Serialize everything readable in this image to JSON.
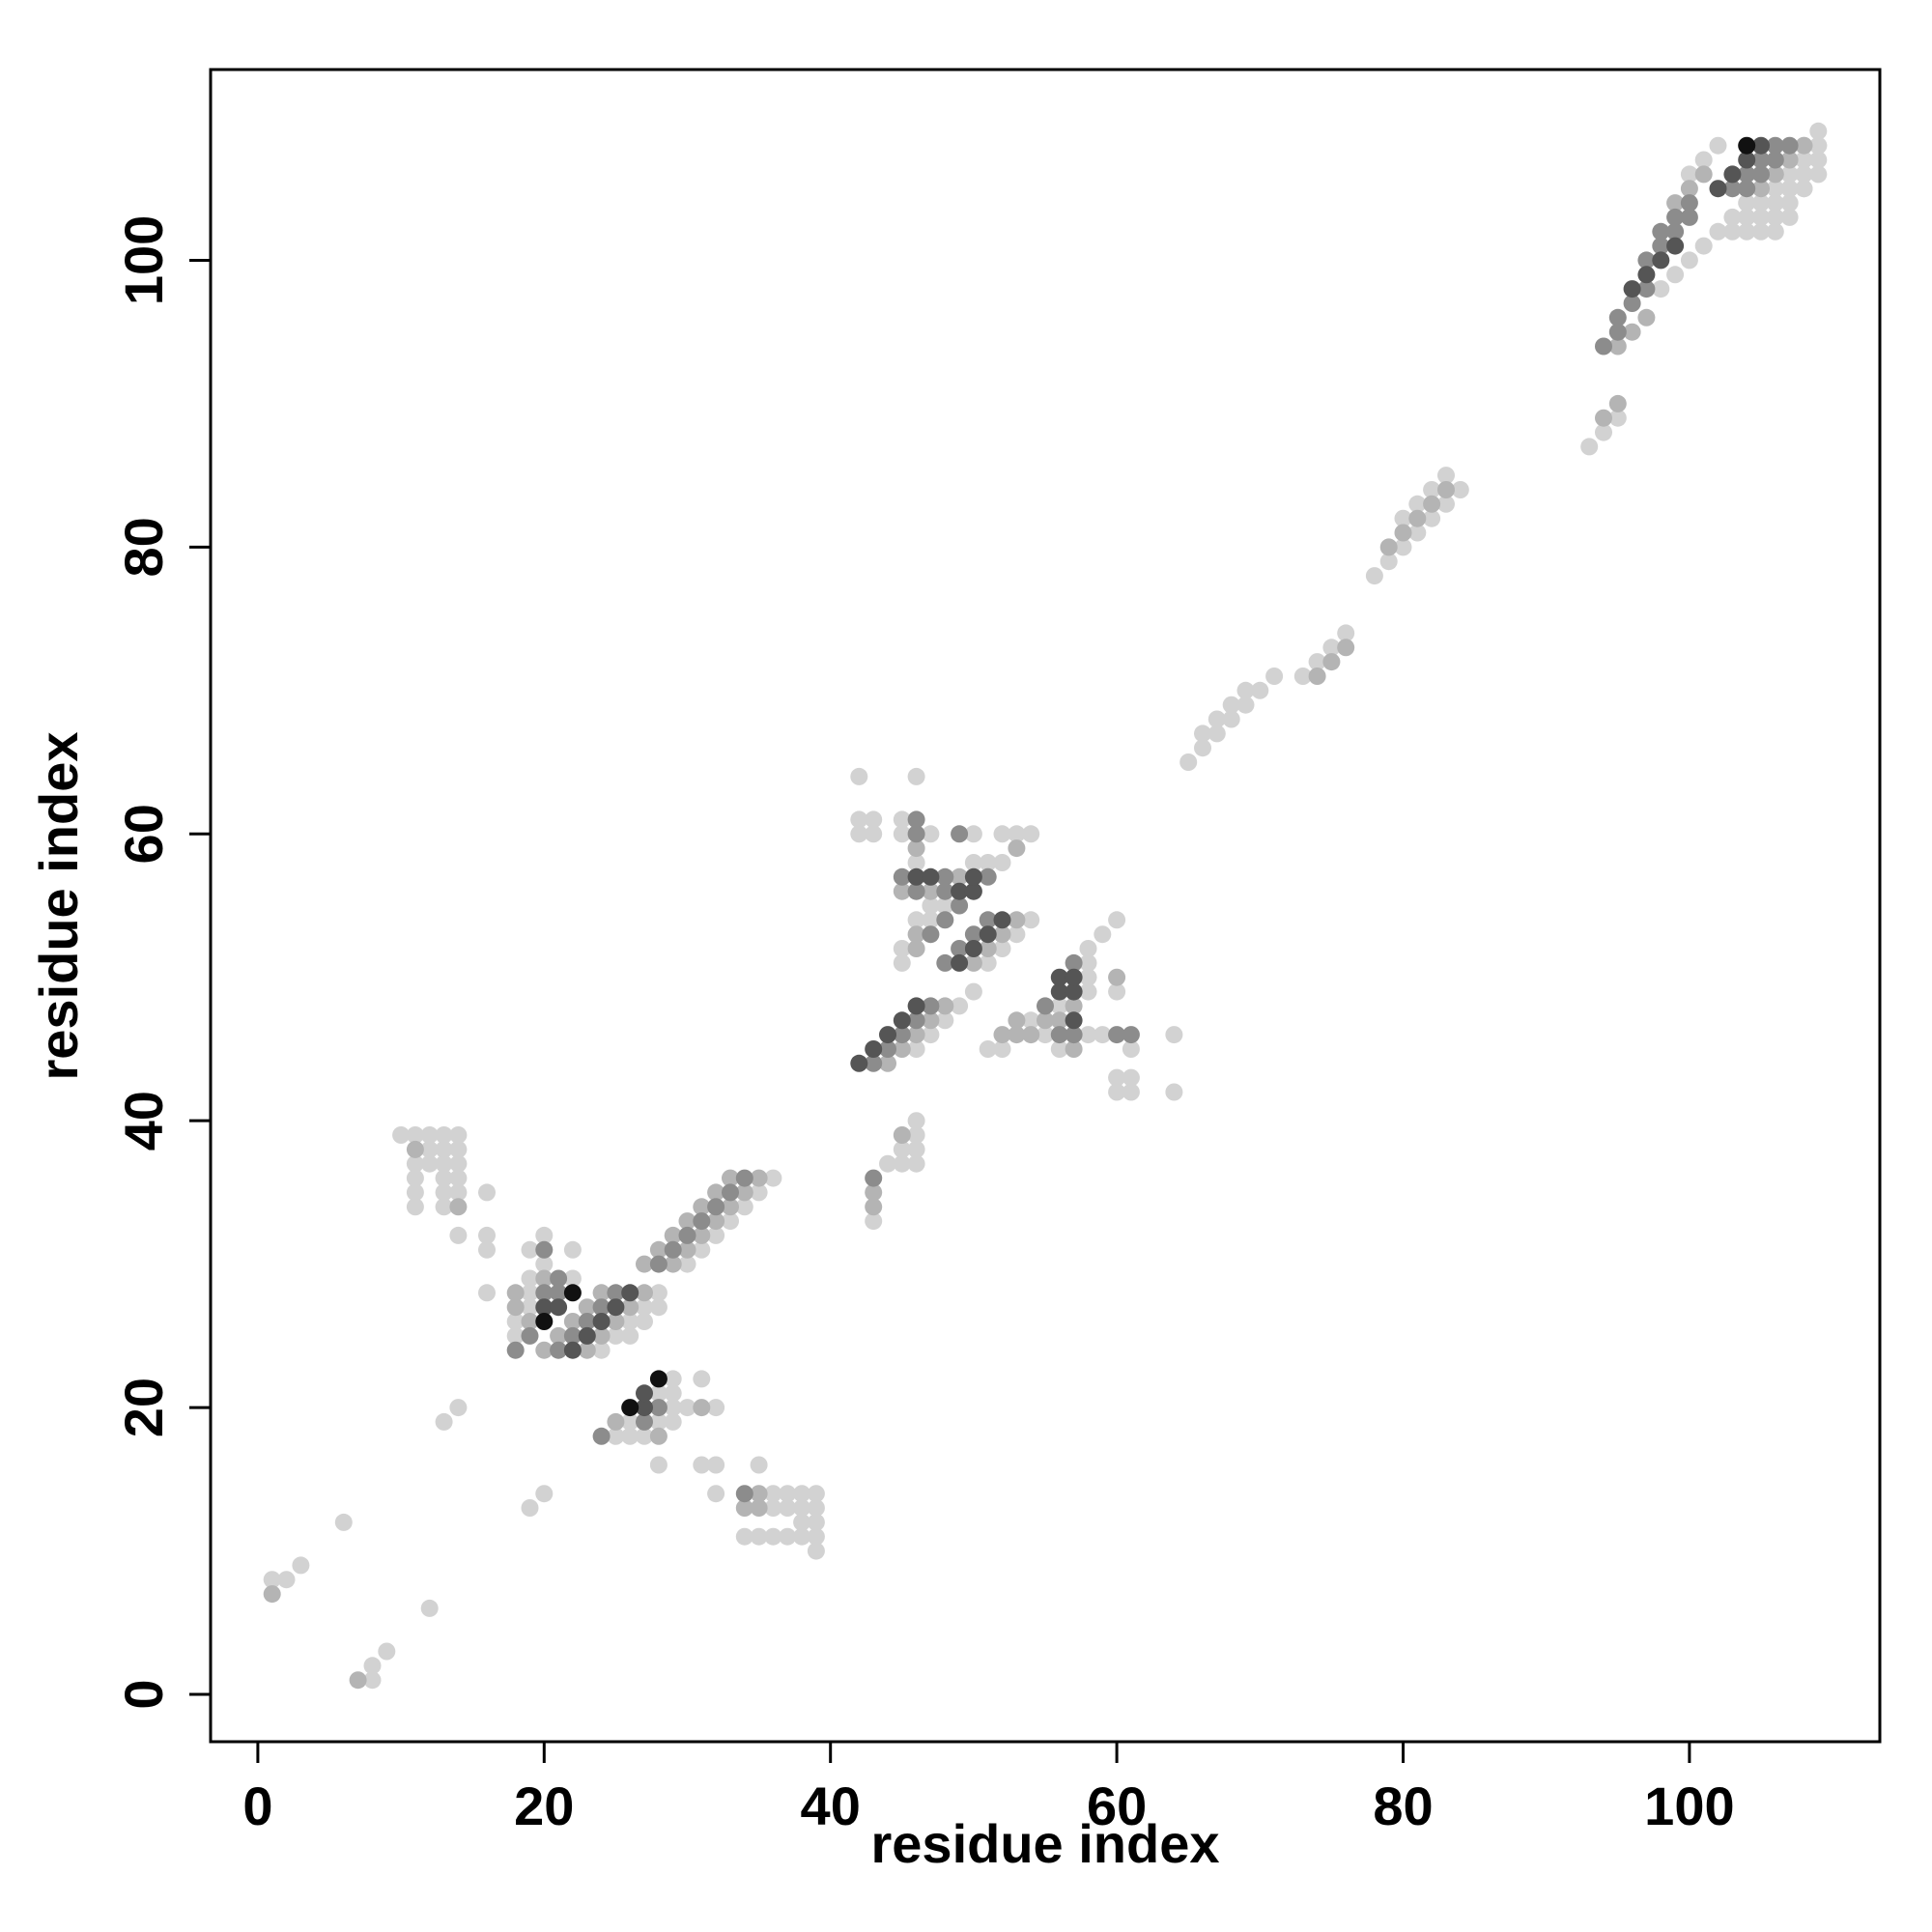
{
  "chart_data": {
    "type": "scatter",
    "title": "",
    "xlabel": "residue index",
    "ylabel": "residue index",
    "xlim": [
      -3.3,
      113.3
    ],
    "ylim": [
      -3.3,
      113.3
    ],
    "xticks": [
      0,
      20,
      40,
      60,
      80,
      100
    ],
    "yticks": [
      0,
      20,
      40,
      60,
      80,
      100
    ],
    "grid": false,
    "legend": "none",
    "shade_scale": {
      "1": "#d2d2d2",
      "2": "#b4b4b4",
      "3": "#8c8c8c",
      "4": "#555555",
      "5": "#111111"
    },
    "segments": [
      [
        0,
        98,
        101,
        1
      ],
      [
        0,
        105,
        108,
        2
      ],
      [
        1,
        104,
        107,
        3
      ],
      [
        2,
        103,
        106,
        3
      ],
      [
        3,
        102,
        105,
        4
      ],
      [
        4,
        104,
        104,
        5
      ],
      [
        -3,
        106,
        109,
        1
      ],
      [
        -2,
        107,
        109,
        1
      ],
      [
        -1,
        108,
        109,
        1
      ],
      [
        -5,
        94,
        95,
        2
      ],
      [
        -6,
        93,
        95,
        1
      ],
      [
        0,
        94,
        95,
        3
      ],
      [
        1,
        95,
        97,
        3
      ],
      [
        2,
        96,
        99,
        4
      ],
      [
        3,
        97,
        100,
        3
      ],
      [
        4,
        98,
        100,
        3
      ],
      [
        5,
        99,
        101,
        2
      ],
      [
        6,
        100,
        102,
        1
      ],
      [
        -1,
        95,
        97,
        2
      ],
      [
        0,
        102,
        109,
        1
      ],
      [
        -1,
        103,
        109,
        1
      ],
      [
        -2,
        104,
        108,
        1
      ],
      [
        -3,
        105,
        108,
        1
      ],
      [
        -4,
        106,
        107,
        1
      ],
      [
        0,
        24,
        28,
        1
      ],
      [
        1,
        23,
        27,
        2
      ],
      [
        2,
        22,
        26,
        4
      ],
      [
        3,
        21,
        25,
        3
      ],
      [
        4,
        20,
        24,
        2
      ],
      [
        -1,
        26,
        28,
        1
      ],
      [
        0,
        30,
        36,
        1
      ],
      [
        1,
        29,
        35,
        2
      ],
      [
        2,
        28,
        34,
        3
      ],
      [
        3,
        27,
        33,
        2
      ],
      [
        0,
        44,
        48,
        2
      ],
      [
        1,
        43,
        47,
        3
      ],
      [
        2,
        42,
        46,
        4
      ],
      [
        -1,
        46,
        50,
        1
      ],
      [
        0,
        51,
        54,
        1
      ],
      [
        1,
        50,
        53,
        2
      ],
      [
        2,
        49,
        52,
        4
      ],
      [
        3,
        48,
        51,
        3
      ],
      [
        0,
        65,
        71,
        1
      ],
      [
        1,
        66,
        69,
        1
      ],
      [
        -2,
        73,
        76,
        1
      ],
      [
        -3,
        74,
        76,
        2
      ],
      [
        0,
        78,
        84,
        1
      ],
      [
        1,
        79,
        83,
        2
      ],
      [
        2,
        80,
        83,
        1
      ]
    ],
    "points": [
      [
        1,
        8,
        1
      ],
      [
        2,
        8,
        1
      ],
      [
        3,
        9,
        1
      ],
      [
        1,
        7,
        2
      ],
      [
        6,
        12,
        1
      ],
      [
        8,
        1,
        1
      ],
      [
        8,
        2,
        1
      ],
      [
        9,
        3,
        1
      ],
      [
        7,
        1,
        2
      ],
      [
        12,
        6,
        1
      ],
      [
        13,
        19,
        1
      ],
      [
        14,
        20,
        1
      ],
      [
        19,
        13,
        1
      ],
      [
        20,
        14,
        1
      ],
      [
        11,
        34,
        1
      ],
      [
        11,
        35,
        1
      ],
      [
        11,
        36,
        1
      ],
      [
        11,
        37,
        1
      ],
      [
        11,
        38,
        2
      ],
      [
        11,
        39,
        1
      ],
      [
        10,
        39,
        1
      ],
      [
        12,
        37,
        1
      ],
      [
        12,
        38,
        1
      ],
      [
        12,
        39,
        1
      ],
      [
        13,
        34,
        1
      ],
      [
        13,
        35,
        1
      ],
      [
        13,
        36,
        1
      ],
      [
        13,
        37,
        1
      ],
      [
        13,
        38,
        1
      ],
      [
        13,
        39,
        1
      ],
      [
        14,
        34,
        2
      ],
      [
        14,
        35,
        1
      ],
      [
        14,
        36,
        1
      ],
      [
        14,
        37,
        1
      ],
      [
        14,
        38,
        1
      ],
      [
        14,
        39,
        1
      ],
      [
        14,
        32,
        1
      ],
      [
        16,
        35,
        1
      ],
      [
        16,
        31,
        1
      ],
      [
        16,
        32,
        1
      ],
      [
        16,
        28,
        1
      ],
      [
        18,
        24,
        3
      ],
      [
        18,
        25,
        1
      ],
      [
        18,
        26,
        1
      ],
      [
        18,
        27,
        2
      ],
      [
        18,
        28,
        2
      ],
      [
        19,
        25,
        3
      ],
      [
        19,
        26,
        2
      ],
      [
        19,
        27,
        1
      ],
      [
        19,
        28,
        1
      ],
      [
        19,
        29,
        1
      ],
      [
        19,
        31,
        1
      ],
      [
        20,
        26,
        5
      ],
      [
        20,
        27,
        4
      ],
      [
        20,
        28,
        3
      ],
      [
        20,
        29,
        2
      ],
      [
        20,
        30,
        1
      ],
      [
        20,
        31,
        3
      ],
      [
        20,
        32,
        1
      ],
      [
        21,
        27,
        4
      ],
      [
        21,
        28,
        3
      ],
      [
        21,
        29,
        3
      ],
      [
        22,
        28,
        5
      ],
      [
        22,
        29,
        1
      ],
      [
        22,
        31,
        1
      ],
      [
        24,
        18,
        3
      ],
      [
        25,
        18,
        1
      ],
      [
        25,
        19,
        2
      ],
      [
        26,
        18,
        1
      ],
      [
        26,
        19,
        1
      ],
      [
        26,
        20,
        5
      ],
      [
        27,
        18,
        1
      ],
      [
        27,
        19,
        3
      ],
      [
        27,
        20,
        4
      ],
      [
        27,
        21,
        4
      ],
      [
        28,
        18,
        2
      ],
      [
        28,
        19,
        1
      ],
      [
        28,
        20,
        3
      ],
      [
        28,
        21,
        1
      ],
      [
        28,
        22,
        5
      ],
      [
        28,
        16,
        1
      ],
      [
        29,
        19,
        1
      ],
      [
        29,
        20,
        1
      ],
      [
        29,
        21,
        1
      ],
      [
        29,
        22,
        1
      ],
      [
        30,
        20,
        1
      ],
      [
        31,
        16,
        1
      ],
      [
        31,
        20,
        2
      ],
      [
        31,
        22,
        1
      ],
      [
        32,
        14,
        1
      ],
      [
        32,
        16,
        1
      ],
      [
        32,
        20,
        1
      ],
      [
        34,
        11,
        1
      ],
      [
        34,
        13,
        2
      ],
      [
        34,
        14,
        3
      ],
      [
        35,
        11,
        1
      ],
      [
        35,
        13,
        2
      ],
      [
        35,
        14,
        2
      ],
      [
        35,
        16,
        1
      ],
      [
        36,
        11,
        1
      ],
      [
        36,
        13,
        1
      ],
      [
        36,
        14,
        1
      ],
      [
        37,
        11,
        1
      ],
      [
        37,
        13,
        1
      ],
      [
        37,
        14,
        1
      ],
      [
        38,
        11,
        1
      ],
      [
        38,
        12,
        1
      ],
      [
        38,
        13,
        1
      ],
      [
        38,
        14,
        1
      ],
      [
        39,
        10,
        1
      ],
      [
        39,
        11,
        1
      ],
      [
        39,
        12,
        1
      ],
      [
        39,
        13,
        1
      ],
      [
        39,
        14,
        1
      ],
      [
        43,
        33,
        1
      ],
      [
        43,
        34,
        2
      ],
      [
        43,
        35,
        2
      ],
      [
        43,
        36,
        3
      ],
      [
        44,
        37,
        1
      ],
      [
        45,
        37,
        1
      ],
      [
        45,
        38,
        1
      ],
      [
        45,
        39,
        2
      ],
      [
        46,
        37,
        1
      ],
      [
        46,
        38,
        1
      ],
      [
        46,
        39,
        1
      ],
      [
        46,
        40,
        1
      ],
      [
        42,
        60,
        1
      ],
      [
        42,
        61,
        1
      ],
      [
        42,
        64,
        1
      ],
      [
        43,
        60,
        1
      ],
      [
        43,
        61,
        1
      ],
      [
        45,
        51,
        1
      ],
      [
        45,
        52,
        1
      ],
      [
        45,
        56,
        2
      ],
      [
        45,
        57,
        3
      ],
      [
        45,
        60,
        1
      ],
      [
        45,
        61,
        1
      ],
      [
        46,
        52,
        2
      ],
      [
        46,
        53,
        2
      ],
      [
        46,
        54,
        1
      ],
      [
        46,
        56,
        3
      ],
      [
        46,
        57,
        4
      ],
      [
        46,
        58,
        1
      ],
      [
        46,
        59,
        2
      ],
      [
        46,
        60,
        3
      ],
      [
        46,
        61,
        3
      ],
      [
        46,
        64,
        1
      ],
      [
        47,
        53,
        3
      ],
      [
        47,
        54,
        1
      ],
      [
        47,
        55,
        1
      ],
      [
        47,
        56,
        2
      ],
      [
        47,
        57,
        4
      ],
      [
        47,
        60,
        1
      ],
      [
        48,
        54,
        3
      ],
      [
        48,
        55,
        1
      ],
      [
        48,
        56,
        3
      ],
      [
        48,
        57,
        3
      ],
      [
        49,
        55,
        3
      ],
      [
        49,
        56,
        4
      ],
      [
        49,
        57,
        2
      ],
      [
        49,
        60,
        3
      ],
      [
        50,
        56,
        4
      ],
      [
        50,
        57,
        4
      ],
      [
        50,
        58,
        1
      ],
      [
        50,
        60,
        1
      ],
      [
        51,
        45,
        1
      ],
      [
        51,
        57,
        3
      ],
      [
        51,
        58,
        1
      ],
      [
        52,
        45,
        1
      ],
      [
        52,
        46,
        2
      ],
      [
        52,
        58,
        1
      ],
      [
        52,
        60,
        1
      ],
      [
        53,
        46,
        2
      ],
      [
        53,
        47,
        2
      ],
      [
        53,
        59,
        2
      ],
      [
        53,
        60,
        1
      ],
      [
        54,
        46,
        2
      ],
      [
        54,
        47,
        1
      ],
      [
        54,
        60,
        1
      ],
      [
        55,
        46,
        1
      ],
      [
        55,
        47,
        2
      ],
      [
        55,
        48,
        3
      ],
      [
        56,
        45,
        1
      ],
      [
        56,
        46,
        3
      ],
      [
        56,
        47,
        2
      ],
      [
        56,
        48,
        1
      ],
      [
        56,
        49,
        4
      ],
      [
        56,
        50,
        4
      ],
      [
        57,
        45,
        2
      ],
      [
        57,
        46,
        3
      ],
      [
        57,
        47,
        4
      ],
      [
        57,
        48,
        2
      ],
      [
        57,
        49,
        4
      ],
      [
        57,
        50,
        4
      ],
      [
        57,
        51,
        3
      ],
      [
        58,
        46,
        1
      ],
      [
        58,
        49,
        1
      ],
      [
        58,
        50,
        1
      ],
      [
        58,
        51,
        1
      ],
      [
        58,
        52,
        1
      ],
      [
        59,
        46,
        1
      ],
      [
        59,
        53,
        1
      ],
      [
        60,
        42,
        1
      ],
      [
        60,
        43,
        1
      ],
      [
        60,
        46,
        3
      ],
      [
        60,
        49,
        1
      ],
      [
        60,
        50,
        2
      ],
      [
        60,
        54,
        1
      ],
      [
        61,
        42,
        1
      ],
      [
        61,
        43,
        1
      ],
      [
        61,
        45,
        1
      ],
      [
        61,
        46,
        3
      ],
      [
        64,
        42,
        1
      ],
      [
        64,
        46,
        1
      ]
    ]
  }
}
